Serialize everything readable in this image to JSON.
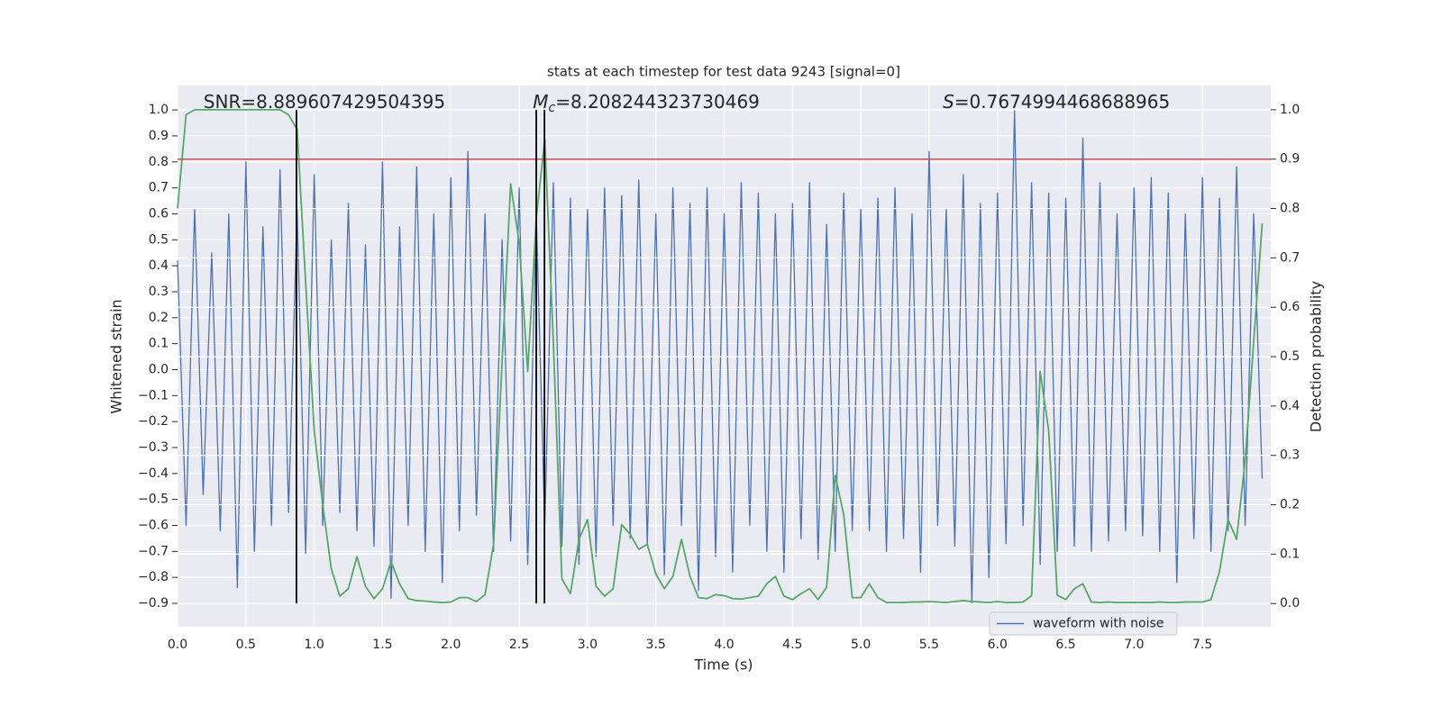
{
  "chart_data": {
    "type": "line",
    "title": "stats at each timestep for test data 9243 [signal=0]",
    "x_label": "Time (s)",
    "y_label": "Whitened strain",
    "y2_label": "Detection probability",
    "xlim": [
      0,
      8.0
    ],
    "ylim": [
      -0.99,
      1.094
    ],
    "y2lim": [
      -0.047,
      1.049
    ],
    "xticks": [
      {
        "value": 0,
        "label": "0.0"
      },
      0.5,
      {
        "value": 1,
        "label": "1.0"
      },
      1.5,
      {
        "value": 2,
        "label": "2.0"
      },
      2.5,
      {
        "value": 3,
        "label": "3.0"
      },
      3.5,
      {
        "value": 4,
        "label": "4.0"
      },
      4.5,
      {
        "value": 5,
        "label": "5.0"
      },
      5.5,
      {
        "value": 6,
        "label": "6.0"
      },
      6.5,
      {
        "value": 7,
        "label": "7.0"
      },
      7.5
    ],
    "yticks": [
      {
        "value": -0.9,
        "label": "−0.9"
      },
      {
        "value": -0.8,
        "label": "−0.8"
      },
      {
        "value": -0.7,
        "label": "−0.7"
      },
      {
        "value": -0.6,
        "label": "−0.6"
      },
      {
        "value": -0.5,
        "label": "−0.5"
      },
      {
        "value": -0.4,
        "label": "−0.4"
      },
      {
        "value": -0.3,
        "label": "−0.3"
      },
      {
        "value": -0.2,
        "label": "−0.2"
      },
      {
        "value": -0.1,
        "label": "−0.1"
      },
      {
        "value": 0,
        "label": "0.0"
      },
      0.1,
      0.2,
      0.3,
      0.4,
      0.5,
      0.6,
      0.7,
      0.8,
      0.9,
      {
        "value": 1,
        "label": "1.0"
      }
    ],
    "y2ticks": [
      {
        "value": 0,
        "label": "0.0"
      },
      0.1,
      0.2,
      0.3,
      0.4,
      0.5,
      0.6,
      0.7,
      0.8,
      0.9,
      {
        "value": 1,
        "label": "1.0"
      }
    ],
    "grid": true,
    "legend": "lower right",
    "x": [
      0,
      0.0625,
      0.125,
      0.1875,
      0.25,
      0.3125,
      0.375,
      0.4375,
      0.5,
      0.5625,
      0.625,
      0.6875,
      0.75,
      0.8125,
      0.875,
      0.9375,
      1,
      1.0625,
      1.125,
      1.1875,
      1.25,
      1.3125,
      1.375,
      1.4375,
      1.5,
      1.5625,
      1.625,
      1.6875,
      1.75,
      1.8125,
      1.875,
      1.9375,
      2,
      2.0625,
      2.125,
      2.1875,
      2.25,
      2.3125,
      2.375,
      2.4375,
      2.5,
      2.5625,
      2.625,
      2.6875,
      2.75,
      2.8125,
      2.875,
      2.9375,
      3,
      3.0625,
      3.125,
      3.1875,
      3.25,
      3.3125,
      3.375,
      3.4375,
      3.5,
      3.5625,
      3.625,
      3.6875,
      3.75,
      3.8125,
      3.875,
      3.9375,
      4,
      4.0625,
      4.125,
      4.1875,
      4.25,
      4.3125,
      4.375,
      4.4375,
      4.5,
      4.5625,
      4.625,
      4.6875,
      4.75,
      4.8125,
      4.875,
      4.9375,
      5,
      5.0625,
      5.125,
      5.1875,
      5.25,
      5.3125,
      5.375,
      5.4375,
      5.5,
      5.5625,
      5.625,
      5.6875,
      5.75,
      5.8125,
      5.875,
      5.9375,
      6,
      6.0625,
      6.125,
      6.1875,
      6.25,
      6.3125,
      6.375,
      6.4375,
      6.5,
      6.5625,
      6.625,
      6.6875,
      6.75,
      6.8125,
      6.875,
      6.9375,
      7,
      7.0625,
      7.125,
      7.1875,
      7.25,
      7.3125,
      7.375,
      7.4375,
      7.5,
      7.5625,
      7.625,
      7.6875,
      7.75,
      7.8125,
      7.875,
      7.9375
    ],
    "series": [
      {
        "name": "waveform with noise",
        "color": "#4c72b0",
        "values": [
          0.42,
          -0.6,
          0.62,
          -0.48,
          0.45,
          -0.62,
          0.6,
          -0.84,
          0.8,
          -0.7,
          0.55,
          -0.6,
          0.77,
          -0.55,
          0.62,
          -0.71,
          0.75,
          -0.6,
          0.5,
          -0.55,
          0.64,
          -0.62,
          0.48,
          -0.68,
          0.8,
          -0.88,
          0.55,
          -0.6,
          0.78,
          -0.7,
          0.6,
          -0.82,
          0.74,
          -0.62,
          0.84,
          -0.56,
          0.6,
          -0.7,
          0.5,
          -0.66,
          0.7,
          -0.75,
          0.6,
          -0.6,
          0.72,
          -0.68,
          0.66,
          -0.75,
          0.62,
          -0.72,
          0.7,
          -0.6,
          0.67,
          -0.65,
          0.73,
          -0.67,
          0.6,
          -0.79,
          0.7,
          -0.6,
          0.64,
          -0.85,
          0.7,
          -0.72,
          0.6,
          -0.78,
          0.72,
          -0.6,
          0.68,
          -0.7,
          0.6,
          -0.78,
          0.64,
          -0.65,
          0.72,
          -0.73,
          0.56,
          -0.7,
          0.68,
          -0.62,
          0.62,
          -0.62,
          0.66,
          -0.7,
          0.7,
          -0.65,
          0.6,
          -0.78,
          0.84,
          -0.6,
          0.62,
          -0.68,
          0.75,
          -0.9,
          0.64,
          -0.8,
          0.68,
          -0.67,
          1.0,
          -0.6,
          0.72,
          -0.75,
          0.68,
          -0.7,
          0.66,
          -0.68,
          0.89,
          -0.7,
          0.72,
          -0.66,
          0.6,
          -0.62,
          0.7,
          -0.64,
          0.74,
          -0.7,
          0.68,
          -0.82,
          0.6,
          -0.65,
          0.74,
          -0.7,
          0.66,
          -0.62,
          0.78,
          -0.6,
          0.6,
          -0.42
        ]
      },
      {
        "color": "#55a868",
        "axis": "y2",
        "values": [
          0.8,
          0.99,
          1,
          1,
          1,
          1,
          1,
          1,
          1,
          1,
          1,
          1,
          1,
          0.99,
          0.96,
          0.65,
          0.35,
          0.2,
          0.07,
          0.015,
          0.03,
          0.095,
          0.035,
          0.01,
          0.03,
          0.085,
          0.04,
          0.01,
          0.006,
          0.005,
          0.003,
          0.002,
          0.003,
          0.012,
          0.012,
          0.004,
          0.018,
          0.12,
          0.49,
          0.85,
          0.73,
          0.47,
          0.78,
          0.94,
          0.53,
          0.05,
          0.02,
          0.13,
          0.17,
          0.035,
          0.015,
          0.03,
          0.16,
          0.14,
          0.11,
          0.12,
          0.06,
          0.03,
          0.055,
          0.13,
          0.055,
          0.012,
          0.01,
          0.018,
          0.016,
          0.01,
          0.009,
          0.012,
          0.015,
          0.04,
          0.055,
          0.015,
          0.008,
          0.02,
          0.03,
          0.008,
          0.033,
          0.26,
          0.18,
          0.012,
          0.012,
          0.04,
          0.012,
          0.002,
          0.002,
          0.002,
          0.003,
          0.003,
          0.004,
          0.003,
          0.002,
          0.004,
          0.006,
          0.004,
          0.003,
          0.002,
          0.004,
          0.002,
          0.002,
          0.003,
          0.016,
          0.47,
          0.35,
          0.017,
          0.008,
          0.03,
          0.04,
          0.003,
          0.002,
          0.003,
          0.002,
          0.002,
          0.002,
          0.002,
          0.002,
          0.003,
          0.002,
          0.002,
          0.003,
          0.003,
          0.003,
          0.008,
          0.065,
          0.17,
          0.13,
          0.29,
          0.53,
          0.77
        ]
      }
    ],
    "hlines": [
      {
        "value": 0.9,
        "axis": "y2",
        "color": "#c44e52"
      }
    ],
    "vlines": {
      "x": [
        0.87,
        2.625,
        2.685
      ],
      "span": [
        -0.9,
        1.0
      ],
      "color": "#000000"
    },
    "annotations": [
      {
        "text": "SNR=8.889607429504395",
        "x": 0.19
      },
      {
        "symbol": "M",
        "subscript": "c",
        "text": "=8.208244323730469",
        "x": 2.6
      },
      {
        "symbol": "S",
        "text": "=0.7674994468688965",
        "x": 5.6
      }
    ]
  }
}
